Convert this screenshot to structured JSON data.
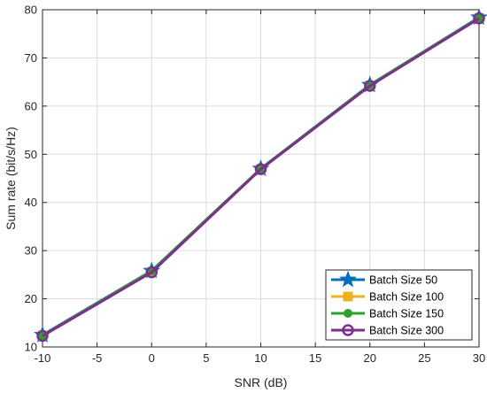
{
  "chart_data": {
    "type": "line",
    "xlabel": "SNR (dB)",
    "ylabel": "Sum rate (bit/s/Hz)",
    "xlim": [
      -10,
      30
    ],
    "ylim": [
      10,
      80
    ],
    "xticks": [
      -10,
      -5,
      0,
      5,
      10,
      15,
      20,
      25,
      30
    ],
    "yticks": [
      10,
      20,
      30,
      40,
      50,
      60,
      70,
      80
    ],
    "grid": true,
    "legend_position": "bottom-right",
    "x": [
      -10,
      0,
      10,
      20,
      30
    ],
    "series": [
      {
        "name": "Batch Size 50",
        "values": [
          12.5,
          25.8,
          47.0,
          64.4,
          78.4
        ],
        "color": "#0072BD",
        "marker": "star"
      },
      {
        "name": "Batch Size 100",
        "values": [
          12.4,
          25.6,
          46.9,
          64.3,
          78.3
        ],
        "color": "#EDB120",
        "marker": "square"
      },
      {
        "name": "Batch Size 150",
        "values": [
          12.4,
          25.8,
          47.0,
          64.4,
          78.3
        ],
        "color": "#2CA02C",
        "marker": "circle-filled"
      },
      {
        "name": "Batch Size 300",
        "values": [
          12.3,
          25.5,
          46.9,
          64.2,
          78.2
        ],
        "color": "#7E2F8E",
        "marker": "circle-open"
      }
    ]
  }
}
